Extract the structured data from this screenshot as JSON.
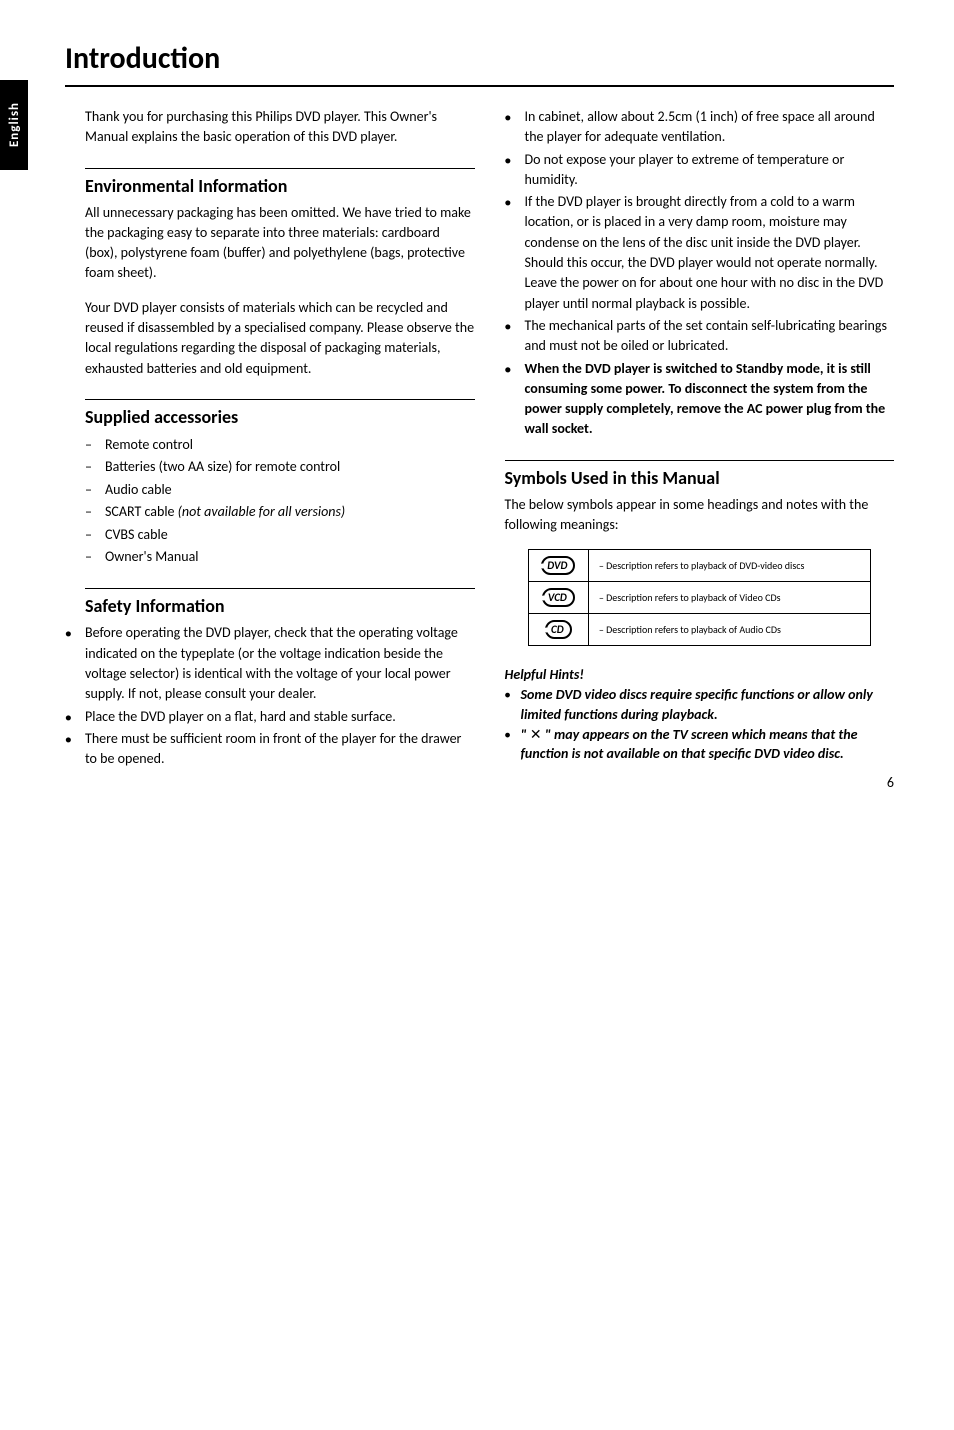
{
  "tab_label": "English",
  "page_title": "Introduction",
  "intro_text": "Thank you for purchasing this Philips DVD player. This Owner's Manual explains the basic operation of this DVD player.",
  "env": {
    "heading": "Environmental Information",
    "p1": "All unnecessary packaging has been omitted. We have tried to make the packaging easy to separate into three materials: cardboard (box), polystyrene foam (buffer) and polyethylene (bags, protective foam sheet).",
    "p2": "Your DVD player consists of materials which can be recycled and reused if disassembled by a specialised company. Please observe the local regulations regarding the disposal of packaging materials, exhausted batteries and old equipment."
  },
  "supplied": {
    "heading": "Supplied accessories",
    "items": {
      "0": "Remote control",
      "1": "Batteries (two AA size) for remote control",
      "2": "Audio cable",
      "3_pre": "SCART cable ",
      "3_ital": "(not available for all versions)",
      "4": "CVBS cable",
      "5": "Owner's Manual"
    }
  },
  "safety": {
    "heading": "Safety Information",
    "items": {
      "0": "Before operating the DVD player, check that the operating voltage indicated on the typeplate (or the voltage indication beside the voltage selector) is identical with the voltage of your local power supply. If not, please consult your dealer.",
      "1": "Place the DVD player on a flat, hard and stable surface.",
      "2": "There must be sufficient room in front of the player for the drawer to be opened.",
      "3": "In cabinet, allow about 2.5cm (1 inch) of free space all around the player for adequate ventilation.",
      "4": "Do not expose your player to extreme of temperature or humidity.",
      "5": "If the DVD player is brought directly from a cold to a warm location, or is placed in a very damp room, moisture may condense on the lens of the disc unit inside the DVD player. Should this occur, the DVD player would not operate normally. Leave the power on for about one hour with no disc in the DVD player until normal playback is possible.",
      "6": "The mechanical parts of the set contain self-lubricating bearings and must not be oiled or lubricated.",
      "7": "When the DVD player is switched to Standby mode, it is still consuming some power.  To disconnect the system from the power supply completely, remove the AC power plug from the wall socket."
    }
  },
  "symbols": {
    "heading": "Symbols Used in this Manual",
    "intro": "The below symbols appear in some headings and notes with the following meanings:",
    "rows": {
      "0": {
        "label": "DVD",
        "desc": "– Description refers to playback of DVD-video discs"
      },
      "1": {
        "label": "VCD",
        "desc": "– Description refers to playback of Video CDs"
      },
      "2": {
        "label": "CD",
        "desc": "– Description refers to playback of Audio CDs"
      }
    }
  },
  "hints": {
    "heading": "Helpful Hints!",
    "items": {
      "0": "Some DVD video discs require specific functions or allow only limited functions during playback.",
      "1_pre": "\" ",
      "1_sym": "✕",
      "1_post": " \" may appears on the TV screen which means that the function is not available on that specific DVD video disc."
    }
  },
  "page_number": "6"
}
